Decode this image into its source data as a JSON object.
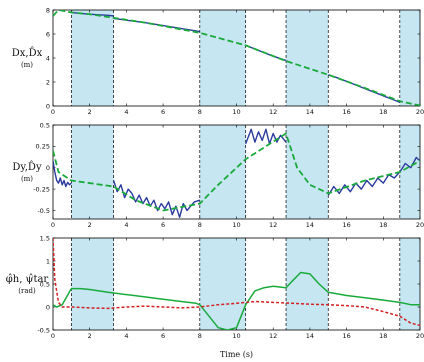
{
  "colors": {
    "shade": "#c6e6f2",
    "measured": "#2b3a9e",
    "estimate": "#1aaa3c",
    "target": "#d42020",
    "boundary": "#000000"
  },
  "chart_data": [
    {
      "type": "line",
      "panel": "top",
      "ylabel": "Dx,D̂x",
      "yunit": "(m)",
      "xlim": [
        0,
        20
      ],
      "ylim": [
        0,
        8
      ],
      "xticks": [
        "0",
        "2",
        "4",
        "6",
        "8",
        "10",
        "12",
        "14",
        "16",
        "18",
        "20"
      ],
      "yticks": [
        "0",
        "2",
        "4",
        "6",
        "8"
      ],
      "shaded_intervals": [
        [
          1.0,
          3.3
        ],
        [
          8.0,
          10.5
        ],
        [
          12.7,
          15.0
        ],
        [
          18.9,
          20.0
        ]
      ],
      "series": [
        {
          "style": "measured-solid",
          "segments": [
            {
              "x": [
                1.0,
                1.5,
                2.0,
                2.5,
                3.0,
                3.3
              ],
              "y": [
                7.8,
                7.72,
                7.65,
                7.6,
                7.56,
                7.5
              ]
            },
            {
              "x": [
                3.3,
                4.0,
                5.0,
                6.0,
                7.0,
                8.0
              ],
              "y": [
                7.3,
                7.15,
                6.95,
                6.7,
                6.45,
                6.2
              ]
            },
            {
              "x": [
                10.5,
                11.0,
                11.5,
                12.0,
                12.7
              ],
              "y": [
                5.05,
                4.75,
                4.45,
                4.15,
                3.8
              ]
            },
            {
              "x": [
                15.0,
                15.5,
                16.0,
                16.5,
                17.0,
                17.5,
                18.0,
                18.5,
                18.9
              ],
              "y": [
                2.6,
                2.35,
                2.05,
                1.75,
                1.45,
                1.15,
                0.85,
                0.55,
                0.3
              ]
            }
          ]
        },
        {
          "style": "estimate-dashed",
          "segments": [
            {
              "x": [
                0,
                0.3,
                1.0,
                2.0,
                3.3,
                5.0,
                8.0,
                10.5,
                12.7,
                15.0,
                17.0,
                18.9,
                19.5,
                20.0
              ],
              "y": [
                7.5,
                8.0,
                7.8,
                7.65,
                7.35,
                6.95,
                6.1,
                5.05,
                3.75,
                2.6,
                1.5,
                0.4,
                0.2,
                0.05
              ]
            }
          ]
        }
      ]
    },
    {
      "type": "line",
      "panel": "middle",
      "ylabel": "Dy,D̂y",
      "yunit": "(m)",
      "xlim": [
        0,
        20
      ],
      "ylim": [
        -0.6,
        0.5
      ],
      "xticks": [
        "0",
        "2",
        "4",
        "6",
        "8",
        "10",
        "12",
        "14",
        "16",
        "18",
        "20"
      ],
      "yticks": [
        "-0.5",
        "-0.25",
        "0",
        "0.25",
        "0.5"
      ],
      "shaded_intervals": [
        [
          1.0,
          3.3
        ],
        [
          8.0,
          10.5
        ],
        [
          12.7,
          15.0
        ],
        [
          18.9,
          20.0
        ]
      ],
      "series": [
        {
          "style": "measured-solid",
          "segments": [
            {
              "x": [
                0,
                0.1,
                0.2,
                0.3,
                0.4,
                0.5,
                0.6,
                0.7,
                0.8,
                0.9,
                1.0
              ],
              "y": [
                0.08,
                -0.05,
                -0.15,
                -0.18,
                -0.12,
                -0.2,
                -0.15,
                -0.22,
                -0.17,
                -0.2,
                -0.18
              ]
            },
            {
              "x": [
                3.3,
                3.5,
                3.7,
                3.9,
                4.1,
                4.3,
                4.5,
                4.7,
                4.9,
                5.1,
                5.3,
                5.5,
                5.7,
                5.9,
                6.1,
                6.3,
                6.5,
                6.7,
                6.9,
                7.1,
                7.3,
                7.5,
                7.7,
                8.0
              ],
              "y": [
                -0.15,
                -0.28,
                -0.2,
                -0.35,
                -0.25,
                -0.3,
                -0.4,
                -0.32,
                -0.42,
                -0.35,
                -0.45,
                -0.38,
                -0.5,
                -0.42,
                -0.48,
                -0.4,
                -0.55,
                -0.45,
                -0.58,
                -0.42,
                -0.5,
                -0.45,
                -0.4,
                -0.38
              ]
            },
            {
              "x": [
                10.5,
                10.8,
                11.0,
                11.2,
                11.4,
                11.6,
                11.8,
                12.0,
                12.2,
                12.4,
                12.7
              ],
              "y": [
                0.28,
                0.45,
                0.3,
                0.42,
                0.32,
                0.45,
                0.28,
                0.4,
                0.3,
                0.38,
                0.3
              ]
            },
            {
              "x": [
                15.0,
                15.3,
                15.6,
                15.9,
                16.2,
                16.5,
                16.8,
                17.1,
                17.4,
                17.7,
                18.0,
                18.3,
                18.6,
                18.9
              ],
              "y": [
                -0.32,
                -0.22,
                -0.3,
                -0.2,
                -0.28,
                -0.18,
                -0.25,
                -0.15,
                -0.22,
                -0.12,
                -0.18,
                -0.08,
                -0.12,
                -0.05
              ]
            },
            {
              "x": [
                18.9,
                19.2,
                19.5,
                19.8,
                20.0
              ],
              "y": [
                -0.05,
                0.05,
                0.0,
                0.12,
                0.08
              ]
            }
          ]
        },
        {
          "style": "estimate-dashed",
          "segments": [
            {
              "x": [
                0,
                0.3,
                1.0,
                3.3,
                4.5,
                6.0,
                8.0,
                9.0,
                10.5,
                12.7,
                13.3,
                14.0,
                15.0,
                17.0,
                18.9,
                20.0
              ],
              "y": [
                0.2,
                -0.05,
                -0.15,
                -0.22,
                -0.38,
                -0.5,
                -0.42,
                -0.2,
                0.1,
                0.4,
                0.0,
                -0.2,
                -0.3,
                -0.15,
                -0.05,
                0.08
              ]
            }
          ]
        }
      ]
    },
    {
      "type": "line",
      "panel": "bottom",
      "ylabel": "φ̂h, ψ̂tar",
      "yunit": "(rad)",
      "xlabel": "Time (s)",
      "xlim": [
        0,
        20
      ],
      "ylim": [
        -0.5,
        1.5
      ],
      "xticks": [
        "0",
        "2",
        "4",
        "6",
        "8",
        "10",
        "12",
        "14",
        "16",
        "18",
        "20"
      ],
      "yticks": [
        "-0.5",
        "0",
        "0.5",
        "1",
        "1.5"
      ],
      "shaded_intervals": [
        [
          1.0,
          3.3
        ],
        [
          8.0,
          10.5
        ],
        [
          12.7,
          15.0
        ],
        [
          18.9,
          20.0
        ]
      ],
      "series": [
        {
          "style": "estimate-solid",
          "segments": [
            {
              "x": [
                0,
                0.2,
                0.5,
                1.0,
                1.5,
                2.0,
                3.0,
                4.0,
                5.0,
                6.0,
                7.0,
                7.8,
                8.0,
                8.5,
                9.0,
                9.5,
                10.0,
                10.5,
                11.0,
                11.5,
                12.0,
                12.7,
                13.0,
                13.5,
                14.0,
                14.5,
                15.0,
                16.0,
                17.0,
                18.0,
                18.9,
                19.5,
                20.0
              ],
              "y": [
                0.05,
                0.0,
                0.05,
                0.4,
                0.4,
                0.38,
                0.32,
                0.27,
                0.22,
                0.17,
                0.12,
                0.08,
                0.05,
                -0.2,
                -0.45,
                -0.5,
                -0.45,
                0.05,
                0.35,
                0.42,
                0.45,
                0.42,
                0.55,
                0.75,
                0.72,
                0.5,
                0.32,
                0.25,
                0.2,
                0.15,
                0.1,
                0.05,
                0.05
              ]
            }
          ]
        },
        {
          "style": "target-dotted",
          "segments": [
            {
              "x": [
                0,
                0.1,
                0.3,
                0.5,
                1.0,
                2.0,
                3.0,
                4.0,
                5.0,
                6.0,
                7.0,
                8.0,
                9.0,
                10.0,
                10.5,
                11.0,
                12.0,
                13.0,
                14.0,
                15.0,
                16.0,
                17.0,
                18.0,
                18.9,
                19.5,
                20.0
              ],
              "y": [
                1.5,
                0.6,
                0.1,
                0.0,
                0.0,
                -0.02,
                -0.03,
                0.0,
                0.02,
                0.0,
                -0.02,
                0.0,
                0.05,
                0.08,
                0.1,
                0.12,
                0.1,
                0.08,
                0.06,
                0.05,
                0.03,
                0.0,
                -0.1,
                -0.2,
                -0.35,
                -0.4
              ]
            }
          ]
        }
      ]
    }
  ]
}
